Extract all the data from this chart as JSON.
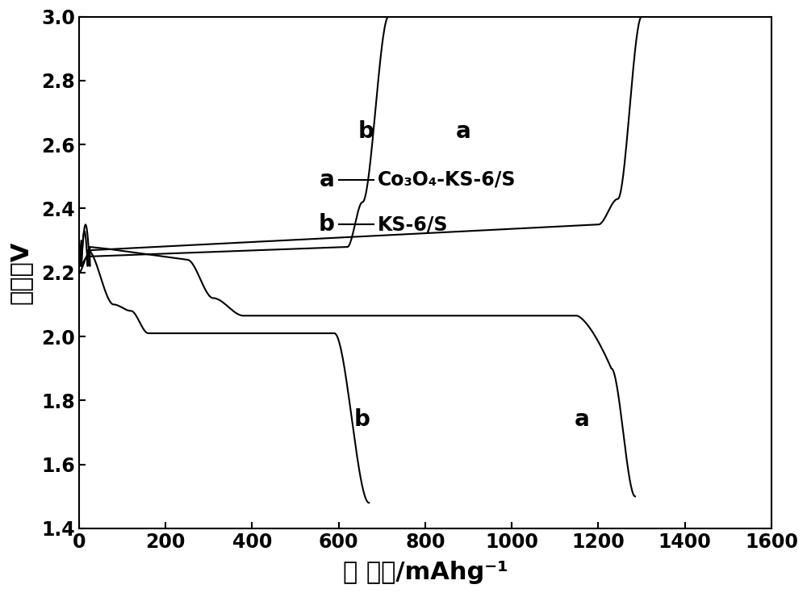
{
  "xlabel": "比 容量/mAhg⁻¹",
  "ylabel": "电压／V",
  "xlim": [
    0,
    1600
  ],
  "ylim": [
    1.4,
    3.0
  ],
  "xticks": [
    0,
    200,
    400,
    600,
    800,
    1000,
    1200,
    1400,
    1600
  ],
  "yticks": [
    1.4,
    1.6,
    1.8,
    2.0,
    2.2,
    2.4,
    2.6,
    2.8,
    3.0
  ],
  "legend_a_label": "Co₃O₄-KS-6/S",
  "legend_b_label": "KS-6/S",
  "line_color": "#000000",
  "background_color": "#ffffff",
  "label_fontsize": 22,
  "tick_fontsize": 17,
  "annotation_fontsize": 20,
  "legend_fontsize": 17,
  "line_width": 1.5
}
